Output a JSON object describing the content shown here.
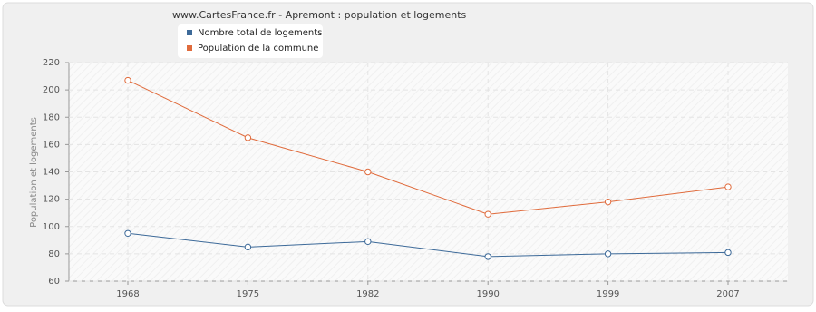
{
  "chart_data": {
    "type": "line",
    "title": "www.CartesFrance.fr - Apremont : population et logements",
    "y_label": "Population et logements",
    "categories": [
      "1968",
      "1975",
      "1982",
      "1990",
      "1999",
      "2007"
    ],
    "series": [
      {
        "name": "Nombre total de logements",
        "color": "#3d6a99",
        "values": [
          95,
          85,
          89,
          78,
          80,
          81
        ]
      },
      {
        "name": "Population de la commune",
        "color": "#e06b3c",
        "values": [
          207,
          165,
          140,
          109,
          118,
          129
        ]
      }
    ],
    "ylim": [
      60,
      220
    ],
    "yticks": [
      60,
      80,
      100,
      120,
      140,
      160,
      180,
      200,
      220
    ],
    "grid": true
  }
}
